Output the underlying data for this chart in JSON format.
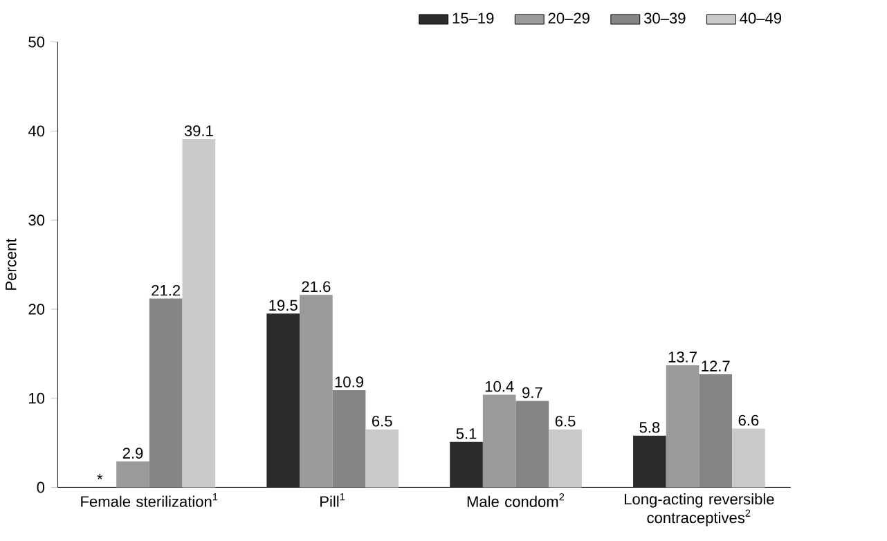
{
  "chart_data": {
    "type": "bar",
    "ylabel": "Percent",
    "categories": [
      "Female sterilization$^{1}$",
      "Pill$^{1}$",
      "Male condom$^{2}$",
      "Long-acting reversible contraceptives$^{2}$"
    ],
    "series": [
      {
        "name": "15–19",
        "color": "#2b2b2b",
        "values": [
          null,
          19.5,
          5.1,
          5.8
        ],
        "value_labels": [
          "*",
          "19.5",
          "5.1",
          "5.8"
        ]
      },
      {
        "name": "20–29",
        "color": "#9a9a9a",
        "values": [
          2.9,
          21.6,
          10.4,
          13.7
        ],
        "value_labels": [
          "2.9",
          "21.6",
          "10.4",
          "13.7"
        ]
      },
      {
        "name": "30–39",
        "color": "#858585",
        "values": [
          21.2,
          10.9,
          9.7,
          12.7
        ],
        "value_labels": [
          "21.2",
          "10.9",
          "9.7",
          "12.7"
        ]
      },
      {
        "name": "40–49",
        "color": "#c9c9c9",
        "values": [
          39.1,
          6.5,
          6.5,
          6.6
        ],
        "value_labels": [
          "39.1",
          "6.5",
          "6.5",
          "6.6"
        ]
      }
    ],
    "ylim": [
      0,
      50
    ],
    "yticks": [
      0,
      10,
      20,
      30,
      40,
      50
    ],
    "grid": false,
    "legend": "top right"
  }
}
